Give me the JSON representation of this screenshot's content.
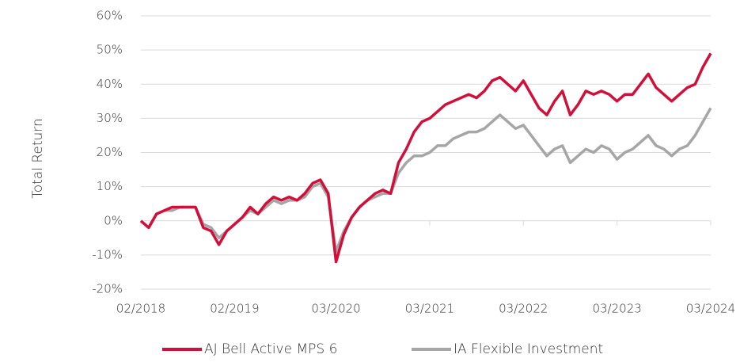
{
  "chart_data": {
    "type": "line",
    "y_label": "Total Return",
    "x": [
      "2018-02",
      "2018-03",
      "2018-04",
      "2018-05",
      "2018-06",
      "2018-07",
      "2018-08",
      "2018-09",
      "2018-10",
      "2018-11",
      "2018-12",
      "2019-01",
      "2019-02",
      "2019-03",
      "2019-04",
      "2019-05",
      "2019-06",
      "2019-07",
      "2019-08",
      "2019-09",
      "2019-10",
      "2019-11",
      "2019-12",
      "2020-01",
      "2020-02",
      "2020-03",
      "2020-04",
      "2020-05",
      "2020-06",
      "2020-07",
      "2020-08",
      "2020-09",
      "2020-10",
      "2020-11",
      "2020-12",
      "2021-01",
      "2021-02",
      "2021-03",
      "2021-04",
      "2021-05",
      "2021-06",
      "2021-07",
      "2021-08",
      "2021-09",
      "2021-10",
      "2021-11",
      "2021-12",
      "2022-01",
      "2022-02",
      "2022-03",
      "2022-04",
      "2022-05",
      "2022-06",
      "2022-07",
      "2022-08",
      "2022-09",
      "2022-10",
      "2022-11",
      "2022-12",
      "2023-01",
      "2023-02",
      "2023-03",
      "2023-04",
      "2023-05",
      "2023-06",
      "2023-07",
      "2023-08",
      "2023-09",
      "2023-10",
      "2023-11",
      "2023-12",
      "2024-01",
      "2024-02",
      "2024-03"
    ],
    "series": [
      {
        "name": "AJ Bell Active MPS 6",
        "color": "#d0103a",
        "values": [
          0,
          -2,
          2,
          3,
          4,
          4,
          4,
          4,
          -2,
          -3,
          -7,
          -3,
          -1,
          1,
          4,
          2,
          5,
          7,
          6,
          7,
          6,
          8,
          11,
          12,
          8,
          -12,
          -4,
          1,
          4,
          6,
          8,
          9,
          8,
          17,
          21,
          26,
          29,
          30,
          32,
          34,
          35,
          36,
          37,
          36,
          38,
          41,
          42,
          40,
          38,
          41,
          37,
          33,
          31,
          35,
          38,
          31,
          34,
          38,
          37,
          38,
          37,
          35,
          37,
          37,
          40,
          43,
          39,
          37,
          35,
          37,
          39,
          40,
          45,
          49
        ]
      },
      {
        "name": "IA Flexible Investment",
        "color": "#a6a6a6",
        "values": [
          0,
          -2,
          2,
          3,
          3,
          4,
          4,
          4,
          -1,
          -2,
          -5,
          -3,
          -1,
          1,
          3,
          2,
          4,
          6,
          5,
          6,
          6,
          7,
          10,
          11,
          7,
          -9,
          -3,
          1,
          4,
          6,
          7,
          8,
          8,
          14,
          17,
          19,
          19,
          20,
          22,
          22,
          24,
          25,
          26,
          26,
          27,
          29,
          31,
          29,
          27,
          28,
          25,
          22,
          19,
          21,
          22,
          17,
          19,
          21,
          20,
          22,
          21,
          18,
          20,
          21,
          23,
          25,
          22,
          21,
          19,
          21,
          22,
          25,
          29,
          33
        ]
      }
    ],
    "ylim": [
      -20,
      60
    ],
    "yticks": [
      {
        "value": -20,
        "label": "-20%"
      },
      {
        "value": -10,
        "label": "-10%"
      },
      {
        "value": 0,
        "label": "0%"
      },
      {
        "value": 10,
        "label": "10%"
      },
      {
        "value": 20,
        "label": "20%"
      },
      {
        "value": 30,
        "label": "30%"
      },
      {
        "value": 40,
        "label": "40%"
      },
      {
        "value": 50,
        "label": "50%"
      },
      {
        "value": 60,
        "label": "60%"
      }
    ],
    "xticks": [
      {
        "value": "2018-02",
        "label": "02/2018"
      },
      {
        "value": "2019-02",
        "label": "02/2019"
      },
      {
        "value": "2020-03",
        "label": "03/2020"
      },
      {
        "value": "2021-03",
        "label": "03/2021"
      },
      {
        "value": "2022-03",
        "label": "03/2022"
      },
      {
        "value": "2023-03",
        "label": "03/2023"
      },
      {
        "value": "2024-03",
        "label": "03/2024"
      }
    ],
    "grid": true
  }
}
